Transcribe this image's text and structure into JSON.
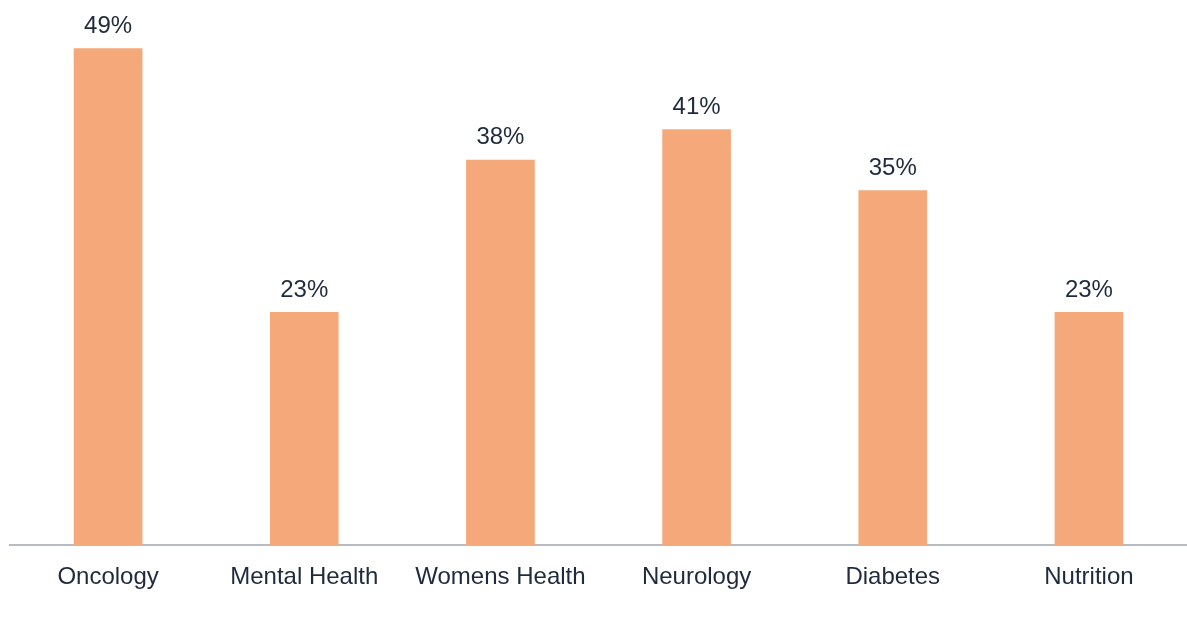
{
  "chart_data": {
    "type": "bar",
    "categories": [
      "Oncology",
      "Mental Health",
      "Womens Health",
      "Neurology",
      "Diabetes",
      "Nutrition"
    ],
    "values": [
      49,
      23,
      38,
      41,
      35,
      23
    ],
    "value_labels": [
      "49%",
      "23%",
      "38%",
      "41%",
      "35%",
      "23%"
    ],
    "color": "#f5a97a",
    "grid": false,
    "legend": false
  }
}
